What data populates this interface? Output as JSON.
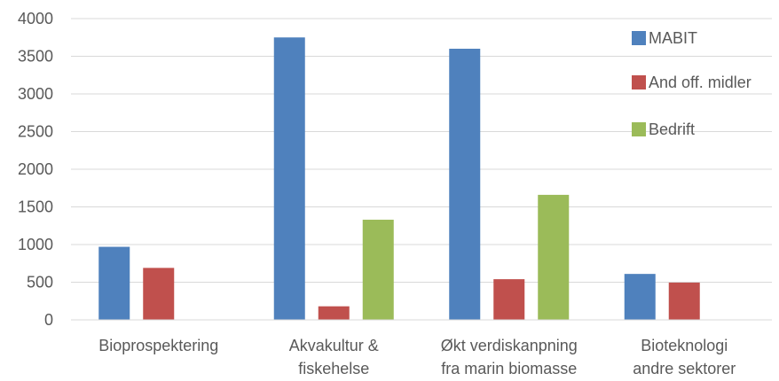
{
  "chart_data": {
    "type": "bar",
    "title": "",
    "xlabel": "",
    "ylabel": "",
    "ylim": [
      0,
      4000
    ],
    "yticks": [
      0,
      500,
      1000,
      1500,
      2000,
      2500,
      3000,
      3500,
      4000
    ],
    "grid": true,
    "legend": "top-right",
    "categories": [
      [
        "Bioprospektering"
      ],
      [
        "Akvakultur &",
        "fiskehelse"
      ],
      [
        "Økt verdiskanpning",
        "fra marin biomasse"
      ],
      [
        "Bioteknologi",
        "andre sektorer"
      ]
    ],
    "series": [
      {
        "name": "MABIT",
        "color": "#4F81BD",
        "values": [
          970,
          3750,
          3600,
          610
        ]
      },
      {
        "name": "And off. midler",
        "color": "#C0504D",
        "values": [
          690,
          180,
          540,
          495
        ]
      },
      {
        "name": "Bedrift",
        "color": "#9BBB59",
        "values": [
          5,
          1330,
          1660,
          0
        ]
      }
    ]
  }
}
